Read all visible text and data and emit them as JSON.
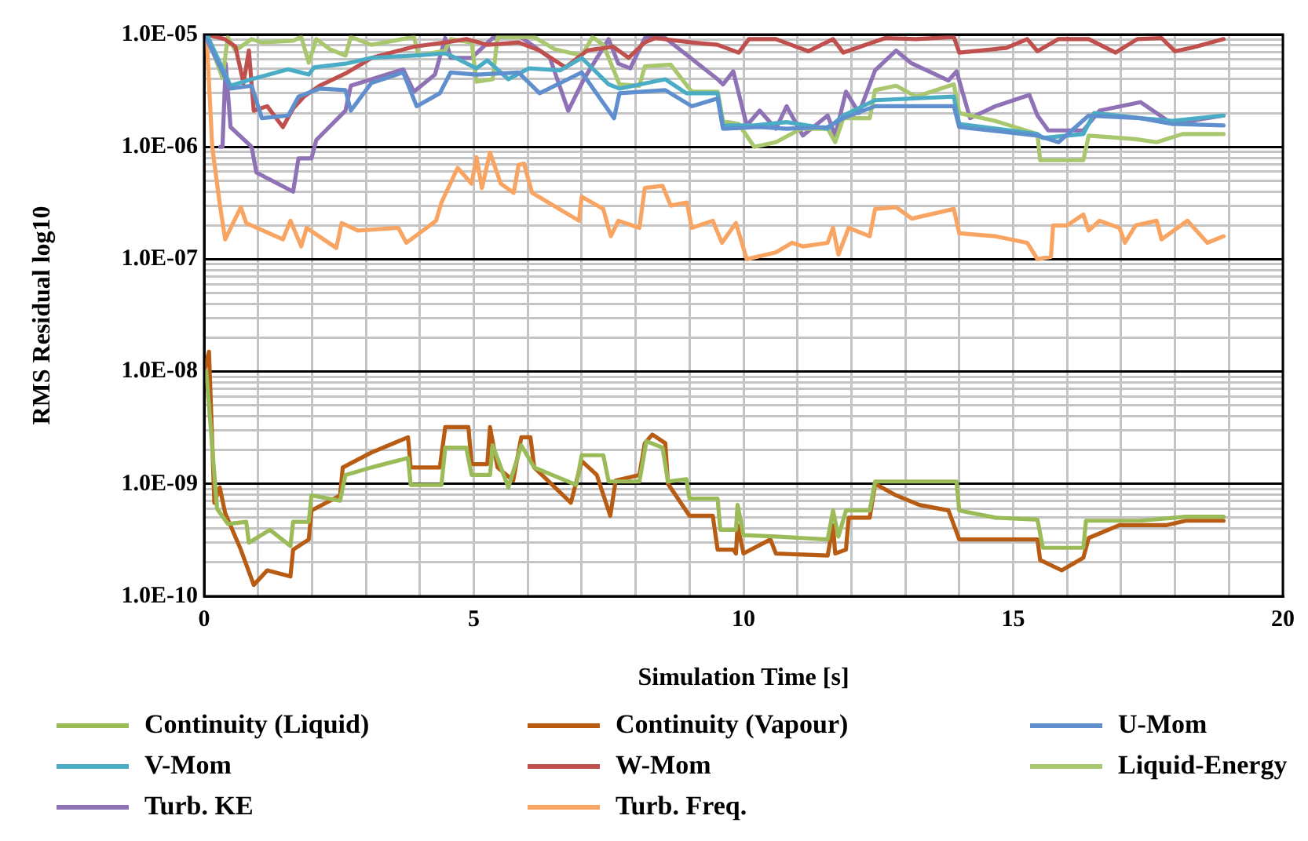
{
  "chart_data": {
    "type": "line",
    "xlabel": "Simulation Time [s]",
    "ylabel": "RMS Residual log10",
    "log": "y",
    "grid": true,
    "legend": "bottom",
    "marker": "none",
    "line_style": "solid",
    "xlim": [
      0,
      20
    ],
    "xticks": [
      0,
      {
        "value": 1,
        "label": null
      },
      {
        "value": 2,
        "label": null
      },
      {
        "value": 3,
        "label": null
      },
      {
        "value": 4,
        "label": null
      },
      5,
      {
        "value": 6,
        "label": null
      },
      {
        "value": 7,
        "label": null
      },
      {
        "value": 8,
        "label": null
      },
      {
        "value": 9,
        "label": null
      },
      10,
      {
        "value": 11,
        "label": null
      },
      {
        "value": 12,
        "label": null
      },
      {
        "value": 13,
        "label": null
      },
      {
        "value": 14,
        "label": null
      },
      15,
      {
        "value": 16,
        "label": null
      },
      {
        "value": 17,
        "label": null
      },
      {
        "value": 18,
        "label": null
      },
      {
        "value": 19,
        "label": null
      },
      20
    ],
    "ylim": [
      1e-10,
      1e-05
    ],
    "yticks": [
      {
        "value": 1e-10,
        "label": "1.0E-10"
      },
      {
        "value": 2e-10,
        "label": null
      },
      {
        "value": 3e-10,
        "label": null
      },
      {
        "value": 4e-10,
        "label": null
      },
      {
        "value": 5e-10,
        "label": null
      },
      {
        "value": 6e-10,
        "label": null
      },
      {
        "value": 7e-10,
        "label": null
      },
      {
        "value": 8e-10,
        "label": null
      },
      {
        "value": 9e-10,
        "label": null
      },
      {
        "value": 1e-09,
        "label": "1.0E-09"
      },
      {
        "value": 2e-09,
        "label": null
      },
      {
        "value": 3e-09,
        "label": null
      },
      {
        "value": 4e-09,
        "label": null
      },
      {
        "value": 5e-09,
        "label": null
      },
      {
        "value": 6e-09,
        "label": null
      },
      {
        "value": 7e-09,
        "label": null
      },
      {
        "value": 8e-09,
        "label": null
      },
      {
        "value": 9e-09,
        "label": null
      },
      {
        "value": 1e-08,
        "label": "1.0E-08"
      },
      {
        "value": 2e-08,
        "label": null
      },
      {
        "value": 3e-08,
        "label": null
      },
      {
        "value": 4e-08,
        "label": null
      },
      {
        "value": 5e-08,
        "label": null
      },
      {
        "value": 6e-08,
        "label": null
      },
      {
        "value": 7e-08,
        "label": null
      },
      {
        "value": 8e-08,
        "label": null
      },
      {
        "value": 9e-08,
        "label": null
      },
      {
        "value": 1e-07,
        "label": "1.0E-07"
      },
      {
        "value": 2e-07,
        "label": null
      },
      {
        "value": 3e-07,
        "label": null
      },
      {
        "value": 4e-07,
        "label": null
      },
      {
        "value": 5e-07,
        "label": null
      },
      {
        "value": 6e-07,
        "label": null
      },
      {
        "value": 7e-07,
        "label": null
      },
      {
        "value": 8e-07,
        "label": null
      },
      {
        "value": 9e-07,
        "label": null
      },
      {
        "value": 1e-06,
        "label": "1.0E-06"
      },
      {
        "value": 2e-06,
        "label": null
      },
      {
        "value": 3e-06,
        "label": null
      },
      {
        "value": 4e-06,
        "label": null
      },
      {
        "value": 5e-06,
        "label": null
      },
      {
        "value": 6e-06,
        "label": null
      },
      {
        "value": 7e-06,
        "label": null
      },
      {
        "value": 8e-06,
        "label": null
      },
      {
        "value": 9e-06,
        "label": null
      },
      {
        "value": 1e-05,
        "label": "1.0E-05"
      }
    ],
    "series": [
      {
        "name": "Continuity (Liquid)",
        "color": "#9bbb59",
        "x": [
          0.04,
          0.24,
          0.44,
          0.78,
          0.83,
          1.22,
          1.6,
          1.65,
          1.94,
          1.99,
          2.52,
          2.62,
          3.1,
          3.78,
          3.83,
          4.4,
          4.47,
          4.86,
          4.96,
          5.3,
          5.35,
          5.64,
          5.88,
          6.12,
          6.9,
          7.0,
          7.4,
          7.5,
          8.07,
          8.2,
          8.5,
          8.6,
          8.94,
          9.0,
          9.52,
          9.57,
          9.86,
          9.89,
          10.0,
          10.6,
          11.56,
          11.66,
          11.76,
          11.9,
          12.34,
          12.44,
          13.95,
          14.0,
          14.67,
          15.45,
          15.55,
          16.3,
          16.35,
          17.36,
          18.2,
          18.9
        ],
        "values": [
          1e-08,
          6e-10,
          4.4e-10,
          4.6e-10,
          3e-10,
          3.9e-10,
          2.8e-10,
          4.6e-10,
          4.6e-10,
          7.9e-10,
          7.1e-10,
          1.2e-09,
          1.4e-09,
          1.7e-09,
          9.8e-10,
          9.8e-10,
          2.1e-09,
          2.1e-09,
          1.2e-09,
          1.2e-09,
          2.2e-09,
          9.3e-10,
          2.2e-09,
          1.4e-09,
          9.8e-10,
          1.8e-09,
          1.8e-09,
          1.05e-09,
          1.05e-09,
          2.4e-09,
          2.1e-09,
          1.05e-09,
          1.1e-09,
          7.4e-10,
          7.4e-10,
          3.9e-10,
          3.9e-10,
          6.5e-10,
          3.5e-10,
          3.4e-10,
          3.2e-10,
          5.8e-10,
          3.4e-10,
          5.8e-10,
          5.8e-10,
          1.05e-09,
          1.05e-09,
          5.8e-10,
          5e-10,
          4.8e-10,
          2.7e-10,
          2.7e-10,
          4.7e-10,
          4.7e-10,
          5.1e-10,
          5.1e-10
        ]
      },
      {
        "name": "Continuity (Vapour)",
        "color": "#b85c14",
        "x": [
          0.0,
          0.09,
          0.19,
          0.29,
          0.39,
          0.68,
          0.92,
          1.17,
          1.6,
          1.65,
          1.94,
          1.99,
          2.52,
          2.57,
          3.1,
          3.78,
          3.83,
          4.37,
          4.47,
          4.9,
          4.96,
          5.25,
          5.3,
          5.44,
          5.73,
          5.88,
          6.05,
          6.12,
          6.8,
          7.0,
          7.28,
          7.53,
          7.63,
          8.07,
          8.17,
          8.31,
          8.55,
          8.6,
          9.0,
          9.43,
          9.52,
          9.81,
          9.86,
          9.89,
          10.0,
          10.5,
          10.6,
          11.56,
          11.66,
          11.7,
          11.9,
          11.95,
          12.34,
          12.44,
          12.83,
          13.26,
          13.8,
          14.0,
          14.58,
          15.45,
          15.5,
          15.9,
          16.3,
          16.4,
          16.97,
          17.85,
          18.2,
          18.9
        ],
        "values": [
          1e-08,
          1.5e-08,
          6.8e-10,
          9.3e-10,
          5.5e-10,
          2.6e-10,
          1.26e-10,
          1.7e-10,
          1.5e-10,
          2.6e-10,
          3.2e-10,
          5.8e-10,
          7.9e-10,
          1.4e-09,
          1.9e-09,
          2.6e-09,
          1.4e-09,
          1.4e-09,
          3.2e-09,
          3.2e-09,
          1.5e-09,
          1.5e-09,
          3.2e-09,
          1.4e-09,
          1.07e-09,
          2.6e-09,
          2.6e-09,
          1.4e-09,
          6.8e-10,
          1.6e-09,
          1.2e-09,
          5.2e-10,
          1.07e-09,
          1.2e-09,
          2.3e-09,
          2.75e-09,
          2.3e-09,
          1e-09,
          5.2e-10,
          5.2e-10,
          2.6e-10,
          2.6e-10,
          2.4e-10,
          4.3e-10,
          2.4e-10,
          3.2e-10,
          2.4e-10,
          2.3e-10,
          4.3e-10,
          2.4e-10,
          2.6e-10,
          5e-10,
          5e-10,
          1e-09,
          7.9e-10,
          6.5e-10,
          5.8e-10,
          3.2e-10,
          3.2e-10,
          3.2e-10,
          2.1e-10,
          1.7e-10,
          2.2e-10,
          3.3e-10,
          4.3e-10,
          4.3e-10,
          4.7e-10,
          4.7e-10
        ]
      },
      {
        "name": "U-Mom",
        "color": "#5f8fcd",
        "x": [
          0.05,
          0.49,
          0.88,
          1.07,
          1.56,
          1.75,
          2.14,
          2.62,
          2.72,
          3.1,
          3.69,
          3.94,
          4.37,
          4.57,
          5.05,
          5.83,
          6.22,
          7.0,
          7.6,
          7.7,
          8.55,
          9.04,
          9.52,
          9.62,
          10.3,
          10.8,
          11.56,
          11.85,
          12.44,
          13.9,
          14.0,
          15.45,
          15.84,
          16.4,
          17.36,
          17.95,
          18.9
        ],
        "values": [
          9e-06,
          3.3e-06,
          3.5e-06,
          1.8e-06,
          1.9e-06,
          2.8e-06,
          3.3e-06,
          3.2e-06,
          2.1e-06,
          3.7e-06,
          4.6e-06,
          2.3e-06,
          3e-06,
          4.6e-06,
          4.4e-06,
          4.6e-06,
          3e-06,
          4.6e-06,
          1.8e-06,
          3e-06,
          3.2e-06,
          2.3e-06,
          2.7e-06,
          1.45e-06,
          1.5e-06,
          1.45e-06,
          1.5e-06,
          1.8e-06,
          2.3e-06,
          2.3e-06,
          1.5e-06,
          1.26e-06,
          1.1e-06,
          1.9e-06,
          1.8e-06,
          1.6e-06,
          1.55e-06
        ]
      },
      {
        "name": "V-Mom",
        "color": "#4bacc6",
        "x": [
          0.05,
          0.49,
          0.88,
          1.56,
          1.94,
          2.04,
          2.62,
          3.1,
          3.89,
          4.47,
          4.66,
          5.05,
          5.25,
          5.64,
          6.02,
          6.6,
          7.0,
          7.5,
          7.7,
          8.55,
          8.94,
          9.52,
          9.62,
          10.2,
          10.8,
          11.56,
          11.85,
          12.44,
          13.9,
          14.0,
          15.45,
          15.55,
          16.3,
          16.5,
          17.36,
          17.95,
          18.9
        ],
        "values": [
          1e-05,
          3.5e-06,
          4e-06,
          4.9e-06,
          4.4e-06,
          5.1e-06,
          5.5e-06,
          6.2e-06,
          6.5e-06,
          6.8e-06,
          6.2e-06,
          5e-06,
          5.9e-06,
          4e-06,
          5e-06,
          4.8e-06,
          6.2e-06,
          3.6e-06,
          3.3e-06,
          4e-06,
          3e-06,
          3e-06,
          1.55e-06,
          1.55e-06,
          1.66e-06,
          1.45e-06,
          1.9e-06,
          2.6e-06,
          2.8e-06,
          1.6e-06,
          1.3e-06,
          1.2e-06,
          1.3e-06,
          2e-06,
          1.8e-06,
          1.7e-06,
          1.9e-06
        ]
      },
      {
        "name": "W-Mom",
        "color": "#c0504d",
        "x": [
          0.05,
          0.38,
          0.58,
          0.73,
          0.83,
          0.92,
          1.17,
          1.46,
          1.65,
          1.85,
          2.14,
          2.62,
          3.11,
          3.89,
          4.47,
          4.86,
          5.25,
          5.83,
          6.22,
          6.7,
          7.1,
          7.58,
          7.87,
          8.17,
          8.36,
          9.04,
          9.52,
          9.91,
          10.1,
          10.6,
          11.2,
          11.66,
          11.85,
          12.63,
          13.2,
          13.9,
          14.0,
          14.87,
          15.26,
          15.45,
          15.84,
          16.4,
          16.9,
          17.3,
          17.75,
          18.0,
          18.3,
          18.9
        ],
        "values": [
          1e-05,
          9.1e-06,
          7.8e-06,
          3.7e-06,
          7.2e-06,
          2.1e-06,
          2.3e-06,
          1.5e-06,
          2.2e-06,
          2.8e-06,
          3.5e-06,
          4.5e-06,
          6.2e-06,
          7.8e-06,
          8.5e-06,
          9.1e-06,
          8.1e-06,
          8.5e-06,
          7.2e-06,
          5.1e-06,
          7.2e-06,
          7.8e-06,
          6.2e-06,
          8.5e-06,
          9.3e-06,
          8.5e-06,
          8.1e-06,
          6.9e-06,
          9.1e-06,
          9.1e-06,
          7.1e-06,
          9.1e-06,
          6.9e-06,
          9.3e-06,
          9.1e-06,
          9.5e-06,
          6.9e-06,
          7.6e-06,
          9.1e-06,
          7.1e-06,
          9.1e-06,
          9.1e-06,
          6.9e-06,
          9.1e-06,
          9.3e-06,
          7.1e-06,
          7.6e-06,
          9.1e-06
        ]
      },
      {
        "name": "Liquid-Energy",
        "color": "#a9c76e",
        "x": [
          0.05,
          0.34,
          0.44,
          0.58,
          0.88,
          1.07,
          1.65,
          1.8,
          1.94,
          2.08,
          2.33,
          2.62,
          2.72,
          3.1,
          3.89,
          3.98,
          4.47,
          4.57,
          4.96,
          5.05,
          5.35,
          5.44,
          6.12,
          6.5,
          7.0,
          7.2,
          7.4,
          7.7,
          8.07,
          8.17,
          8.65,
          9.04,
          9.52,
          9.62,
          9.91,
          10.2,
          10.6,
          11.07,
          11.56,
          11.7,
          11.85,
          12.34,
          12.44,
          12.83,
          13.2,
          13.9,
          14.0,
          14.67,
          15.45,
          15.5,
          16.3,
          16.4,
          17.27,
          17.66,
          18.14,
          18.9
        ],
        "values": [
          1e-05,
          4.1e-06,
          9.5e-06,
          7.2e-06,
          9.1e-06,
          8.5e-06,
          8.8e-06,
          9.5e-06,
          5.6e-06,
          9.1e-06,
          7.4e-06,
          6.5e-06,
          9.5e-06,
          8.1e-06,
          9.5e-06,
          6.5e-06,
          7.2e-06,
          9.1e-06,
          8.5e-06,
          3.8e-06,
          4e-06,
          9.5e-06,
          9.5e-06,
          7.4e-06,
          6.5e-06,
          9.5e-06,
          8.1e-06,
          3.6e-06,
          3.5e-06,
          5.2e-06,
          5.4e-06,
          3.1e-06,
          3.1e-06,
          1.7e-06,
          1.6e-06,
          1e-06,
          1.1e-06,
          1.45e-06,
          1.45e-06,
          1.1e-06,
          1.8e-06,
          1.8e-06,
          3.2e-06,
          3.5e-06,
          2.8e-06,
          3.6e-06,
          2e-06,
          1.7e-06,
          1.3e-06,
          7.6e-07,
          7.6e-07,
          1.26e-06,
          1.17e-06,
          1.1e-06,
          1.3e-06,
          1.3e-06
        ]
      },
      {
        "name": "Turb. KE",
        "color": "#8e72b5",
        "x": [
          0.3,
          0.34,
          0.4,
          0.49,
          0.88,
          0.97,
          1.65,
          1.75,
          1.99,
          2.08,
          2.62,
          2.72,
          3.69,
          3.89,
          4.28,
          4.47,
          4.57,
          4.96,
          5.35,
          5.83,
          6.41,
          6.75,
          7.04,
          7.5,
          7.68,
          7.9,
          8.17,
          8.55,
          9.52,
          9.62,
          9.81,
          10.06,
          10.3,
          10.6,
          10.8,
          11.1,
          11.56,
          11.7,
          11.9,
          12.14,
          12.44,
          12.83,
          13.1,
          13.8,
          13.95,
          14.2,
          14.67,
          15.3,
          15.45,
          15.65,
          16.3,
          16.6,
          17.36,
          17.95,
          18.9
        ],
        "values": [
          1e-06,
          1e-06,
          5.5e-06,
          1.5e-06,
          1e-06,
          5.9e-07,
          4e-07,
          7.9e-07,
          7.9e-07,
          1.15e-06,
          2.1e-06,
          3.5e-06,
          4.9e-06,
          3.1e-06,
          4.4e-06,
          9.3e-06,
          6.2e-06,
          6.2e-06,
          9.3e-06,
          9.8e-06,
          6.2e-06,
          2.1e-06,
          4e-06,
          9.1e-06,
          5.5e-06,
          5e-06,
          9.3e-06,
          9.3e-06,
          4e-06,
          3.6e-06,
          4.7e-06,
          1.55e-06,
          2.1e-06,
          1.45e-06,
          2.3e-06,
          1.26e-06,
          1.9e-06,
          1.26e-06,
          3.1e-06,
          2e-06,
          4.8e-06,
          7.2e-06,
          5.6e-06,
          3.9e-06,
          4.7e-06,
          1.8e-06,
          2.3e-06,
          2.9e-06,
          1.9e-06,
          1.4e-06,
          1.4e-06,
          2.1e-06,
          2.5e-06,
          1.6e-06,
          1.9e-06
        ]
      },
      {
        "name": "Turb. Freq.",
        "color": "#f8a462",
        "x": [
          0.05,
          0.15,
          0.29,
          0.39,
          0.68,
          0.78,
          1.46,
          1.6,
          1.8,
          1.9,
          2.45,
          2.55,
          2.85,
          3.6,
          3.75,
          4.3,
          4.4,
          4.7,
          4.96,
          5.05,
          5.15,
          5.3,
          5.5,
          5.74,
          5.83,
          5.93,
          6.08,
          6.95,
          7.0,
          7.4,
          7.54,
          7.68,
          8.07,
          8.17,
          8.5,
          8.65,
          8.95,
          9.04,
          9.43,
          9.6,
          9.86,
          10.06,
          10.6,
          10.9,
          11.1,
          11.56,
          11.66,
          11.76,
          11.95,
          12.34,
          12.44,
          12.83,
          13.12,
          13.9,
          14.0,
          14.67,
          15.26,
          15.45,
          15.7,
          15.74,
          16.0,
          16.3,
          16.4,
          16.6,
          16.97,
          17.07,
          17.27,
          17.66,
          17.75,
          18.23,
          18.6,
          18.9
        ],
        "values": [
          9e-06,
          1e-06,
          3.1e-07,
          1.5e-07,
          2.9e-07,
          2.1e-07,
          1.5e-07,
          2.2e-07,
          1.3e-07,
          1.9e-07,
          1.26e-07,
          2.1e-07,
          1.8e-07,
          1.9e-07,
          1.4e-07,
          2.2e-07,
          3.2e-07,
          6.5e-07,
          4.7e-07,
          8.1e-07,
          4.3e-07,
          8.9e-07,
          4.7e-07,
          3.9e-07,
          6.9e-07,
          7.1e-07,
          3.9e-07,
          2.2e-07,
          3.6e-07,
          2.8e-07,
          1.6e-07,
          2.2e-07,
          1.9e-07,
          4.3e-07,
          4.5e-07,
          3e-07,
          3.2e-07,
          1.9e-07,
          2.2e-07,
          1.4e-07,
          2.1e-07,
          1e-07,
          1.15e-07,
          1.4e-07,
          1.3e-07,
          1.4e-07,
          1.9e-07,
          1.1e-07,
          1.9e-07,
          1.6e-07,
          2.8e-07,
          2.9e-07,
          2.3e-07,
          2.8e-07,
          1.7e-07,
          1.6e-07,
          1.4e-07,
          1e-07,
          1.05e-07,
          2e-07,
          2e-07,
          2.5e-07,
          1.8e-07,
          2.2e-07,
          1.9e-07,
          1.4e-07,
          2e-07,
          2.2e-07,
          1.5e-07,
          2.2e-07,
          1.4e-07,
          1.6e-07
        ]
      }
    ]
  }
}
